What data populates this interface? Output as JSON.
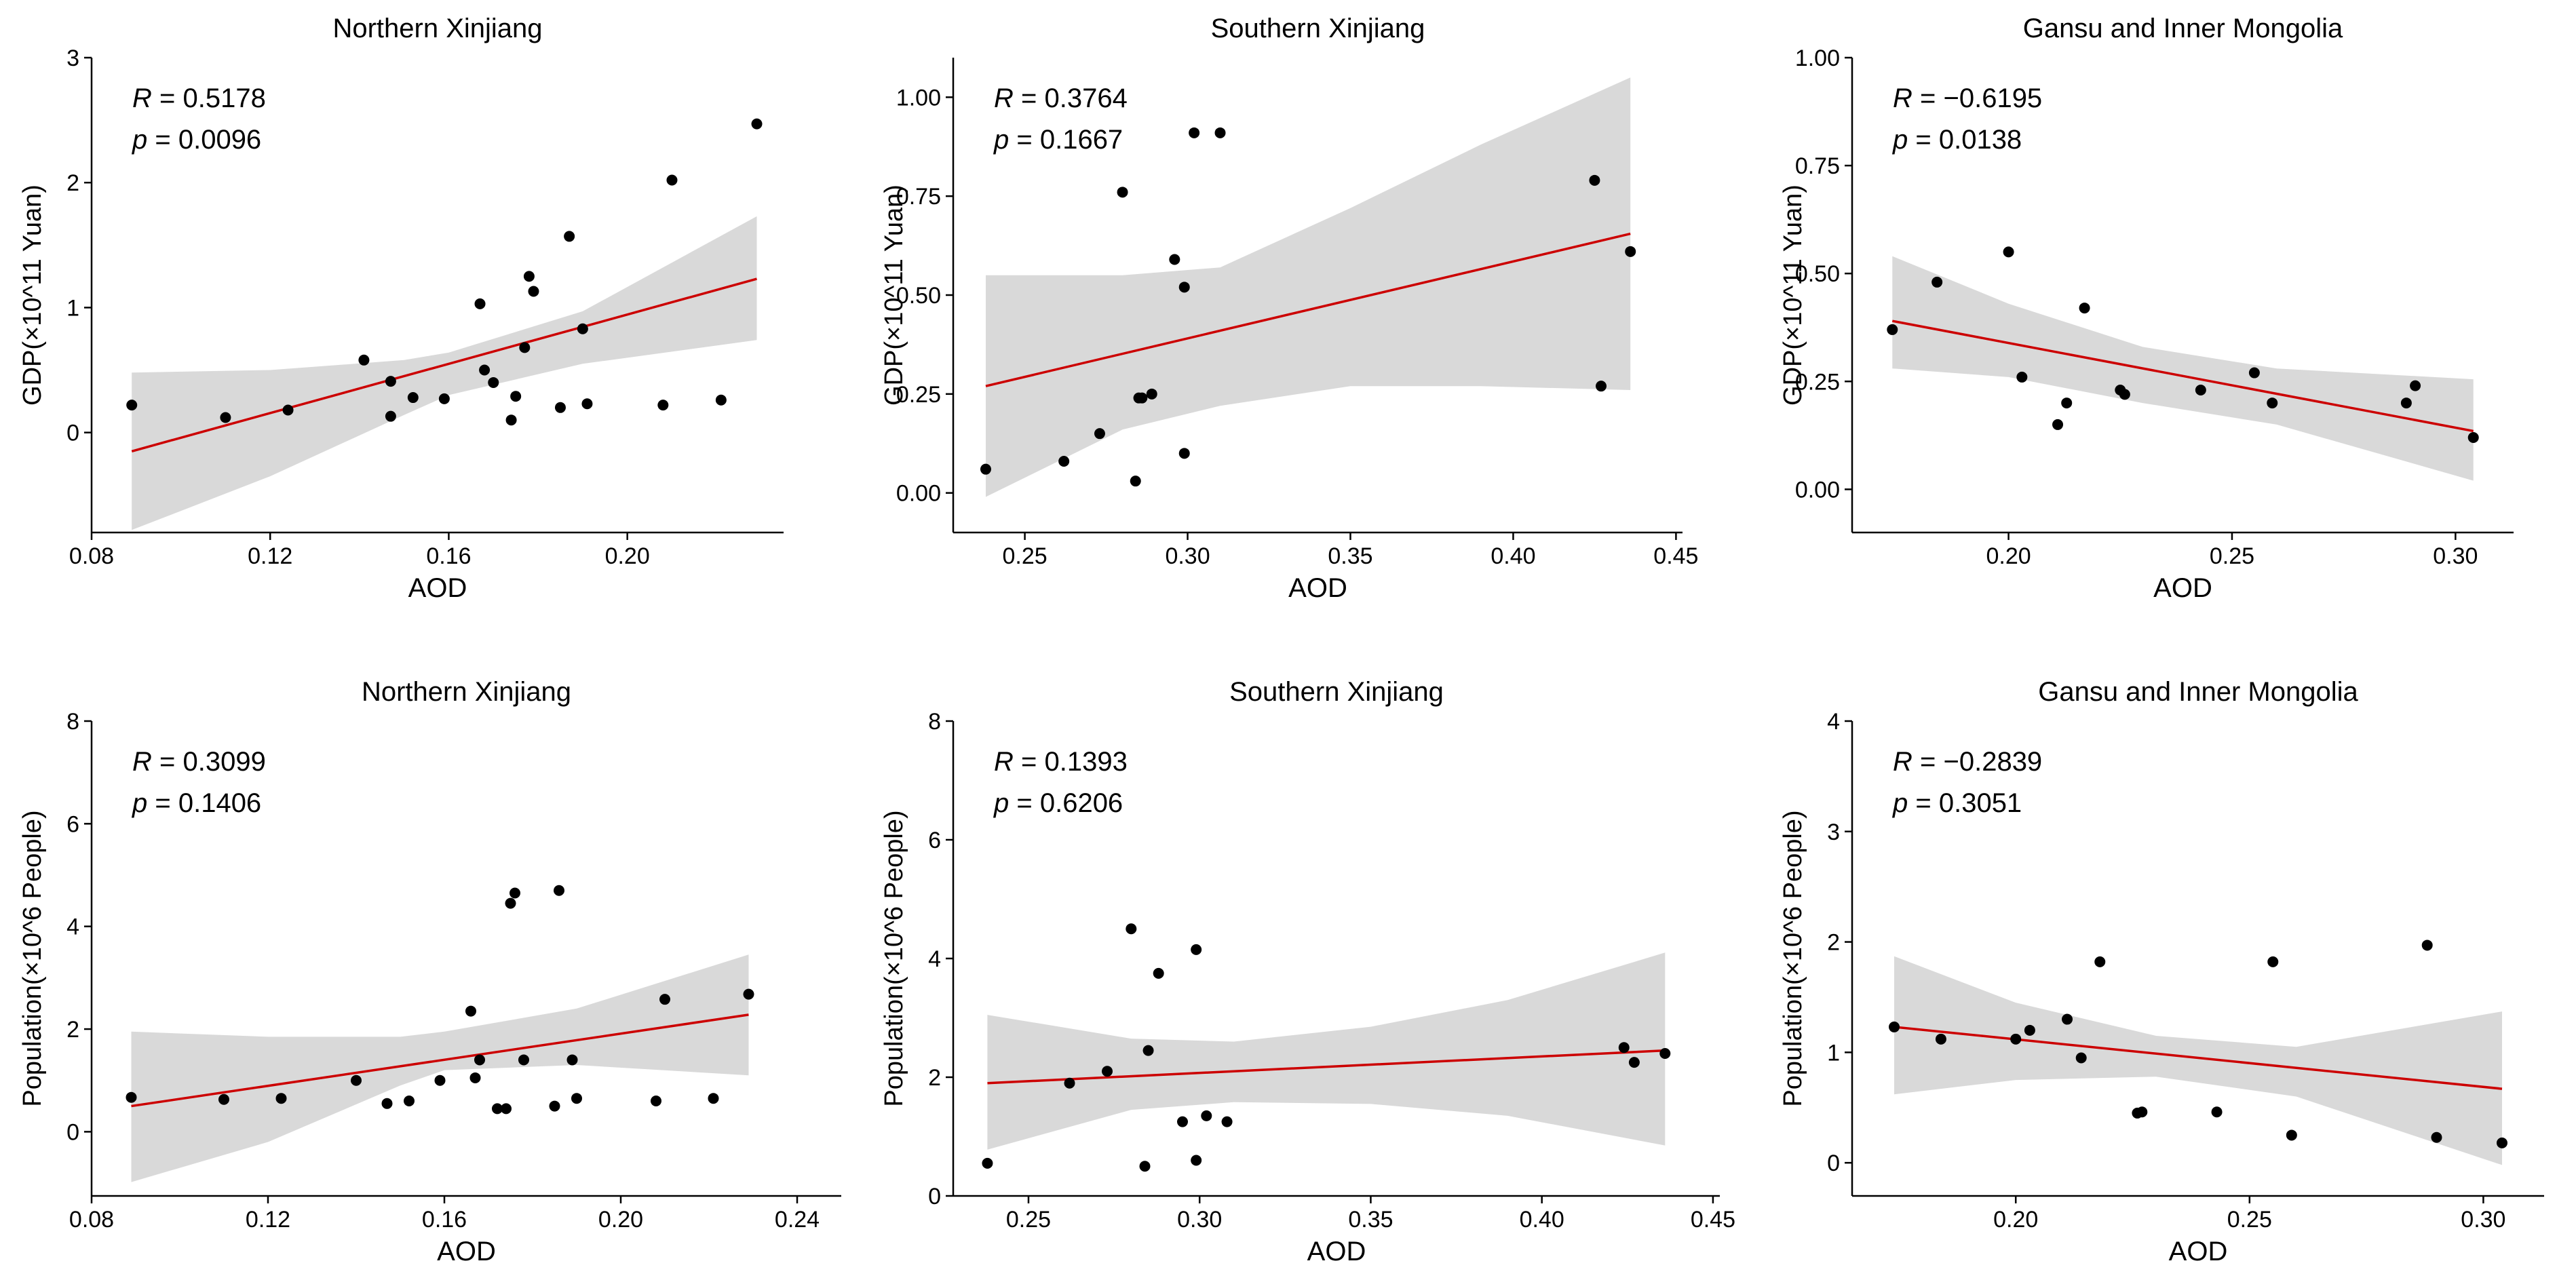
{
  "chart_data": [
    {
      "type": "scatter",
      "title": "Northern Xinjiang",
      "xlabel": "AOD",
      "ylabel": "GDP(×10^11 Yuan)",
      "xlim": [
        0.08,
        0.235
      ],
      "ylim": [
        -0.8,
        3.0
      ],
      "xticks": [
        0.08,
        0.12,
        0.16,
        0.2
      ],
      "xtick_labels": [
        "0.08",
        "0.12",
        "0.16",
        "0.20"
      ],
      "yticks": [
        0,
        1,
        2,
        3
      ],
      "ytick_labels": [
        "0",
        "1",
        "2",
        "3"
      ],
      "stats": {
        "r_label": "R",
        "r_value": "= 0.5178",
        "p_label": "p",
        "p_value": "= 0.0096"
      },
      "fit": {
        "x": [
          0.089,
          0.229
        ],
        "y": [
          -0.15,
          1.23
        ]
      },
      "ci_band": {
        "x": [
          0.089,
          0.12,
          0.15,
          0.16,
          0.19,
          0.229
        ],
        "upper": [
          0.48,
          0.5,
          0.58,
          0.64,
          0.97,
          1.73
        ],
        "lower": [
          -0.78,
          -0.35,
          0.14,
          0.3,
          0.55,
          0.74
        ]
      },
      "points": {
        "x": [
          0.089,
          0.11,
          0.124,
          0.141,
          0.147,
          0.147,
          0.152,
          0.159,
          0.167,
          0.168,
          0.17,
          0.174,
          0.175,
          0.177,
          0.178,
          0.179,
          0.185,
          0.187,
          0.19,
          0.191,
          0.208,
          0.21,
          0.221,
          0.229
        ],
        "y": [
          0.22,
          0.12,
          0.18,
          0.58,
          0.41,
          0.13,
          0.28,
          0.27,
          1.03,
          0.5,
          0.4,
          0.1,
          0.29,
          0.68,
          1.25,
          1.13,
          0.2,
          1.57,
          0.83,
          0.23,
          0.22,
          2.02,
          0.26,
          2.47
        ]
      }
    },
    {
      "type": "scatter",
      "title": "Southern Xinjiang",
      "xlabel": "AOD",
      "ylabel": "GDP(×10^11 Yuan)",
      "xlim": [
        0.228,
        0.452
      ],
      "ylim": [
        -0.1,
        1.1
      ],
      "xticks": [
        0.25,
        0.3,
        0.35,
        0.4,
        0.45
      ],
      "xtick_labels": [
        "0.25",
        "0.30",
        "0.35",
        "0.40",
        "0.45"
      ],
      "yticks": [
        0.0,
        0.25,
        0.5,
        0.75,
        1.0
      ],
      "ytick_labels": [
        "0.00",
        "0.25",
        "0.50",
        "0.75",
        "1.00"
      ],
      "stats": {
        "r_label": "R",
        "r_value": "= 0.3764",
        "p_label": "p",
        "p_value": "= 0.1667"
      },
      "fit": {
        "x": [
          0.238,
          0.436
        ],
        "y": [
          0.27,
          0.655
        ]
      },
      "ci_band": {
        "x": [
          0.238,
          0.28,
          0.31,
          0.35,
          0.39,
          0.436
        ],
        "upper": [
          0.55,
          0.55,
          0.57,
          0.72,
          0.88,
          1.05
        ],
        "lower": [
          -0.01,
          0.16,
          0.22,
          0.27,
          0.27,
          0.26
        ]
      },
      "points": {
        "x": [
          0.238,
          0.262,
          0.273,
          0.28,
          0.284,
          0.285,
          0.286,
          0.289,
          0.296,
          0.299,
          0.299,
          0.302,
          0.31,
          0.425,
          0.427,
          0.436
        ],
        "y": [
          0.06,
          0.08,
          0.15,
          0.76,
          0.03,
          0.24,
          0.24,
          0.25,
          0.59,
          0.1,
          0.52,
          0.91,
          0.91,
          0.79,
          0.27,
          0.61
        ]
      }
    },
    {
      "type": "scatter",
      "title": "Gansu and Inner Mongolia",
      "xlabel": "AOD",
      "ylabel": "GDP(×10^11 Yuan)",
      "xlim": [
        0.165,
        0.313
      ],
      "ylim": [
        -0.1,
        1.0
      ],
      "xticks": [
        0.2,
        0.25,
        0.3
      ],
      "xtick_labels": [
        "0.20",
        "0.25",
        "0.30"
      ],
      "yticks": [
        0.0,
        0.25,
        0.5,
        0.75,
        1.0
      ],
      "ytick_labels": [
        "0.00",
        "0.25",
        "0.50",
        "0.75",
        "1.00"
      ],
      "stats": {
        "r_label": "R",
        "r_value": "= −0.6195",
        "p_label": "p",
        "p_value": "= 0.0138"
      },
      "fit": {
        "x": [
          0.174,
          0.304
        ],
        "y": [
          0.39,
          0.135
        ]
      },
      "ci_band": {
        "x": [
          0.174,
          0.2,
          0.23,
          0.26,
          0.304
        ],
        "upper": [
          0.54,
          0.43,
          0.33,
          0.28,
          0.255
        ],
        "lower": [
          0.28,
          0.26,
          0.2,
          0.15,
          0.02
        ]
      },
      "points": {
        "x": [
          0.174,
          0.184,
          0.2,
          0.203,
          0.211,
          0.213,
          0.217,
          0.225,
          0.226,
          0.243,
          0.255,
          0.259,
          0.289,
          0.291,
          0.304
        ],
        "y": [
          0.37,
          0.48,
          0.55,
          0.26,
          0.15,
          0.2,
          0.42,
          0.23,
          0.22,
          0.23,
          0.27,
          0.2,
          0.2,
          0.24,
          0.12
        ]
      }
    },
    {
      "type": "scatter",
      "title": "Northern Xinjiang",
      "xlabel": "AOD",
      "ylabel": "Population(×10^6 People)",
      "xlim": [
        0.08,
        0.25
      ],
      "ylim": [
        -1.25,
        8.0
      ],
      "xticks": [
        0.08,
        0.12,
        0.16,
        0.2,
        0.24
      ],
      "xtick_labels": [
        "0.08",
        "0.12",
        "0.16",
        "0.20",
        "0.24"
      ],
      "yticks": [
        0,
        2,
        4,
        6,
        8
      ],
      "ytick_labels": [
        "0",
        "2",
        "4",
        "6",
        "8"
      ],
      "stats": {
        "r_label": "R",
        "r_value": "= 0.3099",
        "p_label": "p",
        "p_value": "= 0.1406"
      },
      "fit": {
        "x": [
          0.089,
          0.229
        ],
        "y": [
          0.5,
          2.28
        ]
      },
      "ci_band": {
        "x": [
          0.089,
          0.12,
          0.15,
          0.16,
          0.19,
          0.229
        ],
        "upper": [
          1.95,
          1.85,
          1.85,
          1.95,
          2.4,
          3.45
        ],
        "lower": [
          -0.98,
          -0.2,
          0.9,
          1.2,
          1.3,
          1.1
        ]
      },
      "points": {
        "x": [
          0.089,
          0.11,
          0.123,
          0.14,
          0.147,
          0.152,
          0.159,
          0.166,
          0.167,
          0.168,
          0.172,
          0.174,
          0.175,
          0.176,
          0.178,
          0.185,
          0.186,
          0.189,
          0.19,
          0.208,
          0.21,
          0.221,
          0.229
        ],
        "y": [
          0.67,
          0.63,
          0.65,
          1.0,
          0.55,
          0.6,
          1.0,
          2.35,
          1.05,
          1.4,
          0.45,
          0.45,
          4.45,
          4.65,
          1.4,
          0.5,
          4.7,
          1.4,
          0.65,
          0.6,
          2.58,
          0.65,
          2.68
        ]
      }
    },
    {
      "type": "scatter",
      "title": "Southern Xinjiang",
      "xlabel": "AOD",
      "ylabel": "Population(×10^6 People)",
      "xlim": [
        0.228,
        0.452
      ],
      "ylim": [
        0,
        8.0
      ],
      "xticks": [
        0.25,
        0.3,
        0.35,
        0.4,
        0.45
      ],
      "xtick_labels": [
        "0.25",
        "0.30",
        "0.35",
        "0.40",
        "0.45"
      ],
      "yticks": [
        0,
        2,
        4,
        6,
        8
      ],
      "ytick_labels": [
        "0",
        "2",
        "4",
        "6",
        "8"
      ],
      "stats": {
        "r_label": "R",
        "r_value": "= 0.1393",
        "p_label": "p",
        "p_value": "= 0.6206"
      },
      "fit": {
        "x": [
          0.238,
          0.436
        ],
        "y": [
          1.9,
          2.45
        ]
      },
      "ci_band": {
        "x": [
          0.238,
          0.28,
          0.31,
          0.35,
          0.39,
          0.436
        ],
        "upper": [
          3.05,
          2.65,
          2.6,
          2.85,
          3.3,
          4.1
        ],
        "lower": [
          0.78,
          1.45,
          1.58,
          1.55,
          1.35,
          0.85
        ]
      },
      "points": {
        "x": [
          0.238,
          0.262,
          0.273,
          0.28,
          0.284,
          0.285,
          0.288,
          0.295,
          0.299,
          0.299,
          0.302,
          0.308,
          0.424,
          0.427,
          0.436
        ],
        "y": [
          0.55,
          1.9,
          2.1,
          4.5,
          0.5,
          2.45,
          3.75,
          1.25,
          4.15,
          0.6,
          1.35,
          1.25,
          2.5,
          2.25,
          2.4
        ]
      }
    },
    {
      "type": "scatter",
      "title": "Gansu and Inner Mongolia",
      "xlabel": "AOD",
      "ylabel": "Population(×10^6 People)",
      "xlim": [
        0.165,
        0.313
      ],
      "ylim": [
        -0.3,
        4.0
      ],
      "xticks": [
        0.2,
        0.25,
        0.3
      ],
      "xtick_labels": [
        "0.20",
        "0.25",
        "0.30"
      ],
      "yticks": [
        0,
        1,
        2,
        3,
        4
      ],
      "ytick_labels": [
        "0",
        "1",
        "2",
        "3",
        "4"
      ],
      "stats": {
        "r_label": "R",
        "r_value": "= −0.2839",
        "p_label": "p",
        "p_value": "= 0.3051"
      },
      "fit": {
        "x": [
          0.174,
          0.304
        ],
        "y": [
          1.23,
          0.67
        ]
      },
      "ci_band": {
        "x": [
          0.174,
          0.2,
          0.23,
          0.26,
          0.304
        ],
        "upper": [
          1.87,
          1.45,
          1.15,
          1.05,
          1.37
        ],
        "lower": [
          0.62,
          0.75,
          0.78,
          0.6,
          -0.02
        ]
      },
      "points": {
        "x": [
          0.174,
          0.184,
          0.2,
          0.203,
          0.211,
          0.214,
          0.218,
          0.226,
          0.227,
          0.243,
          0.255,
          0.259,
          0.288,
          0.29,
          0.304
        ],
        "y": [
          1.23,
          1.12,
          1.12,
          1.2,
          1.3,
          0.95,
          1.82,
          0.45,
          0.46,
          0.46,
          1.82,
          0.25,
          1.97,
          0.23,
          0.18
        ]
      }
    }
  ]
}
